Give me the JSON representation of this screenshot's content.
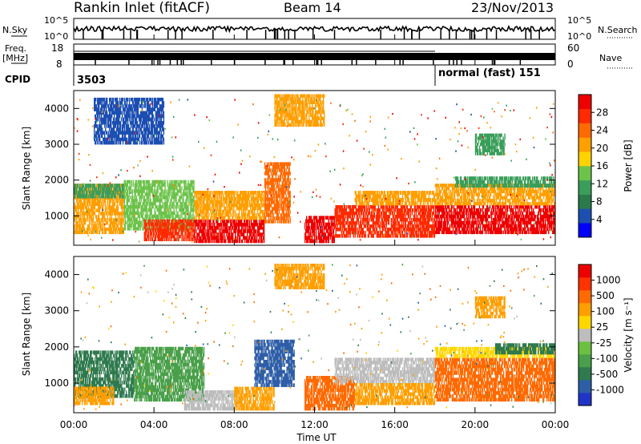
{
  "header": {
    "station": "Rankin Inlet (fitACF)",
    "beam": "Beam 14",
    "date": "23/Nov/2013"
  },
  "noise_panel": {
    "left_label": "N.Sky",
    "right_label": "N.Search",
    "y_ticks": [
      "10^5",
      "10^0"
    ]
  },
  "freq_panel": {
    "left_label_top": "Freq.",
    "left_label_unit": "[MHz]",
    "left_ticks": [
      "18",
      "8"
    ],
    "right_label": "Nave",
    "right_ticks": [
      "60",
      "0"
    ]
  },
  "cpid_panel": {
    "label": "CPID",
    "segments": [
      {
        "text": "3503",
        "start_hour": 0
      },
      {
        "text": "normal (fast) 151",
        "start_hour": 18
      }
    ]
  },
  "x_axis": {
    "label": "Time UT",
    "ticks": [
      "00:00",
      "04:00",
      "08:00",
      "12:00",
      "16:00",
      "20:00",
      "00:00"
    ]
  },
  "power_colorbar": {
    "label": "Power [dB]",
    "ticks": [
      "28",
      "24",
      "20",
      "16",
      "12",
      "8",
      "4"
    ],
    "colors": [
      "#0000ff",
      "#1d4fb2",
      "#2a7a4a",
      "#3a9e5a",
      "#6cc34a",
      "#ffd200",
      "#ff9f00",
      "#ff6a00",
      "#ff2a00",
      "#ee0000"
    ]
  },
  "velocity_colorbar": {
    "label": "Velocity [m s⁻¹]",
    "ticks": [
      "1000",
      "500",
      "100",
      "25",
      "-25",
      "-100",
      "-500",
      "-1000"
    ],
    "colors": [
      "#2035c8",
      "#2f5ea8",
      "#2f7a4e",
      "#4aa04a",
      "#6cc040",
      "#bdbdbd",
      "#ffd700",
      "#ff9f00",
      "#ff6a00",
      "#ff3200",
      "#ee0000"
    ]
  },
  "chart_data": [
    {
      "type": "heatmap",
      "name": "Power",
      "ylabel": "Slant Range [km]",
      "xlabel": "",
      "y_ticks": [
        "4000",
        "3000",
        "2000",
        "1000"
      ],
      "xlim": [
        0,
        24
      ],
      "ylim": [
        180,
        4500
      ],
      "bands": [
        {
          "t0": 0.0,
          "t1": 2.5,
          "r0": 500,
          "r1": 1900,
          "color": "#ff9f00"
        },
        {
          "t0": 0.0,
          "t1": 2.5,
          "r0": 1500,
          "r1": 1900,
          "color": "#3a9e5a"
        },
        {
          "t0": 2.5,
          "t1": 6.0,
          "r0": 600,
          "r1": 2000,
          "color": "#6cc34a"
        },
        {
          "t0": 3.5,
          "t1": 6.0,
          "r0": 300,
          "r1": 900,
          "color": "#ff2a00"
        },
        {
          "t0": 6.0,
          "t1": 9.5,
          "r0": 250,
          "r1": 900,
          "color": "#ee0000"
        },
        {
          "t0": 6.0,
          "t1": 9.5,
          "r0": 900,
          "r1": 1700,
          "color": "#ff9f00"
        },
        {
          "t0": 9.5,
          "t1": 10.8,
          "r0": 800,
          "r1": 2500,
          "color": "#ff6a00"
        },
        {
          "t0": 11.5,
          "t1": 13.0,
          "r0": 250,
          "r1": 1000,
          "color": "#ee0000"
        },
        {
          "t0": 13.0,
          "t1": 18.0,
          "r0": 400,
          "r1": 1300,
          "color": "#ff2a00"
        },
        {
          "t0": 14.0,
          "t1": 18.0,
          "r0": 1300,
          "r1": 1700,
          "color": "#ff9f00"
        },
        {
          "t0": 18.0,
          "t1": 24.0,
          "r0": 500,
          "r1": 1300,
          "color": "#ee0000"
        },
        {
          "t0": 18.0,
          "t1": 24.0,
          "r0": 1300,
          "r1": 1900,
          "color": "#ff9f00"
        },
        {
          "t0": 19.0,
          "t1": 24.0,
          "r0": 1800,
          "r1": 2100,
          "color": "#3a9e5a"
        },
        {
          "t0": 10.0,
          "t1": 12.5,
          "r0": 3500,
          "r1": 4400,
          "color": "#ff9f00"
        },
        {
          "t0": 20.0,
          "t1": 21.5,
          "r0": 2700,
          "r1": 3300,
          "color": "#3a9e5a"
        },
        {
          "t0": 1.0,
          "t1": 4.5,
          "r0": 3000,
          "r1": 4300,
          "color": "#1d4fb2"
        }
      ]
    },
    {
      "type": "heatmap",
      "name": "Velocity",
      "ylabel": "Slant Range [km]",
      "xlabel": "Time UT",
      "y_ticks": [
        "4000",
        "3000",
        "2000",
        "1000"
      ],
      "xlim": [
        0,
        24
      ],
      "ylim": [
        180,
        4500
      ],
      "bands": [
        {
          "t0": 0.0,
          "t1": 3.0,
          "r0": 600,
          "r1": 1900,
          "color": "#2f7a4e"
        },
        {
          "t0": 0.0,
          "t1": 2.0,
          "r0": 400,
          "r1": 900,
          "color": "#ff9f00"
        },
        {
          "t0": 3.0,
          "t1": 6.5,
          "r0": 500,
          "r1": 2000,
          "color": "#4aa04a"
        },
        {
          "t0": 5.5,
          "t1": 8.0,
          "r0": 250,
          "r1": 800,
          "color": "#bdbdbd"
        },
        {
          "t0": 8.0,
          "t1": 10.0,
          "r0": 250,
          "r1": 900,
          "color": "#ff9f00"
        },
        {
          "t0": 9.0,
          "t1": 11.0,
          "r0": 900,
          "r1": 2200,
          "color": "#2f5ea8"
        },
        {
          "t0": 11.5,
          "t1": 14.0,
          "r0": 250,
          "r1": 1200,
          "color": "#ff6a00"
        },
        {
          "t0": 13.0,
          "t1": 18.0,
          "r0": 1000,
          "r1": 1700,
          "color": "#bdbdbd"
        },
        {
          "t0": 14.0,
          "t1": 18.0,
          "r0": 400,
          "r1": 1000,
          "color": "#ff9f00"
        },
        {
          "t0": 18.0,
          "t1": 24.0,
          "r0": 500,
          "r1": 1700,
          "color": "#ff6a00"
        },
        {
          "t0": 18.0,
          "t1": 24.0,
          "r0": 1700,
          "r1": 2000,
          "color": "#ffd700"
        },
        {
          "t0": 21.0,
          "t1": 24.0,
          "r0": 1800,
          "r1": 2100,
          "color": "#2f7a4e"
        },
        {
          "t0": 10.0,
          "t1": 12.5,
          "r0": 3600,
          "r1": 4300,
          "color": "#ff9f00"
        },
        {
          "t0": 20.0,
          "t1": 21.5,
          "r0": 2800,
          "r1": 3400,
          "color": "#ff9f00"
        }
      ]
    }
  ]
}
